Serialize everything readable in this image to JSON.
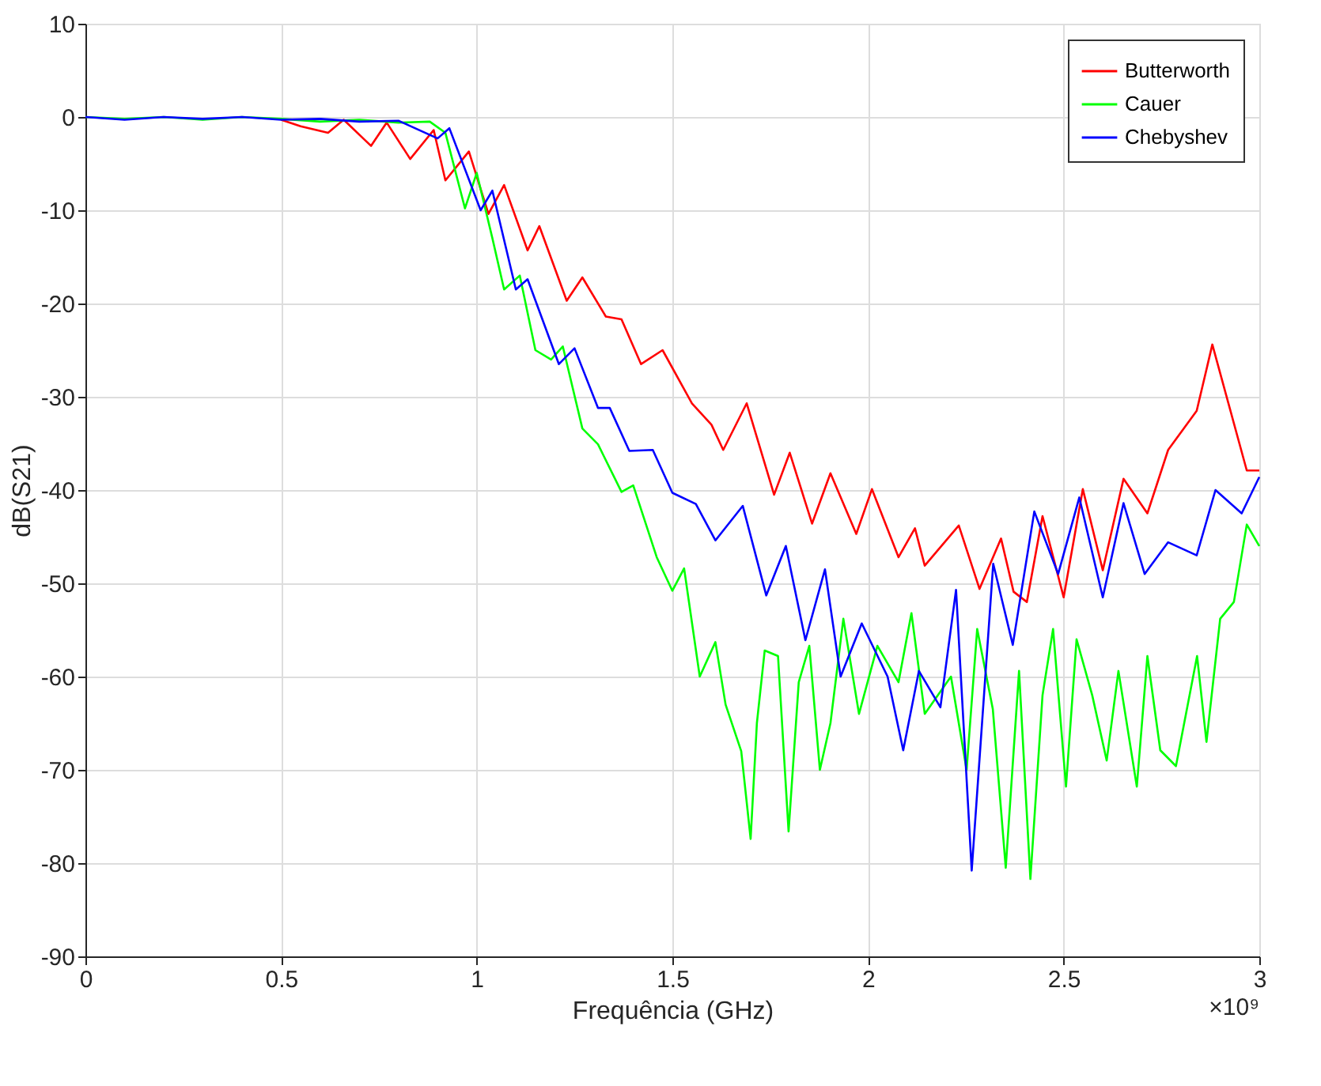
{
  "chart_data": {
    "type": "line",
    "xlabel": "Frequência (GHz)",
    "ylabel": "dB(S21)",
    "annotations": [
      "×10⁹"
    ],
    "xlim": [
      0,
      3
    ],
    "ylim": [
      -90,
      10
    ],
    "xticks": [
      0,
      0.5,
      1,
      1.5,
      2,
      2.5,
      3
    ],
    "yticks": [
      -90,
      -80,
      -70,
      -60,
      -50,
      -40,
      -30,
      -20,
      -10,
      0,
      10
    ],
    "grid": true,
    "legend": "top right",
    "line_style": "solid",
    "marker": "none",
    "series": [
      {
        "name": "Butterworth",
        "color": "#ff0000",
        "x": [
          0.5,
          0.55,
          0.62,
          0.66,
          0.73,
          0.77,
          0.83,
          0.89,
          0.92,
          0.98,
          1.03,
          1.07,
          1.13,
          1.16,
          1.23,
          1.27,
          1.33,
          1.37,
          1.42,
          1.475,
          1.55,
          1.6,
          1.63,
          1.69,
          1.76,
          1.8,
          1.857,
          1.904,
          1.97,
          2.01,
          2.078,
          2.12,
          2.145,
          2.232,
          2.285,
          2.34,
          2.372,
          2.406,
          2.446,
          2.5,
          2.549,
          2.6,
          2.653,
          2.714,
          2.767,
          2.84,
          2.88,
          2.968,
          3.0
        ],
        "values": [
          -0.3,
          -1,
          -1.7,
          -0.3,
          -3.1,
          -0.6,
          -4.5,
          -1.4,
          -6.8,
          -3.7,
          -10.4,
          -7.3,
          -14.3,
          -11.7,
          -19.7,
          -17.2,
          -21.4,
          -21.7,
          -26.5,
          -25,
          -30.7,
          -33,
          -35.7,
          -30.7,
          -40.5,
          -36,
          -43.6,
          -38.2,
          -44.7,
          -39.9,
          -47.2,
          -44.1,
          -48.1,
          -43.8,
          -50.6,
          -45.2,
          -50.9,
          -52,
          -42.8,
          -51.5,
          -39.9,
          -48.6,
          -38.8,
          -42.5,
          -35.7,
          -31.5,
          -24.4,
          -37.9,
          -37.9
        ]
      },
      {
        "name": "Cauer",
        "color": "#00ff00",
        "x": [
          0,
          0.1,
          0.2,
          0.3,
          0.4,
          0.5,
          0.6,
          0.7,
          0.8,
          0.88,
          0.92,
          0.97,
          1.0,
          1.04,
          1.07,
          1.11,
          1.15,
          1.19,
          1.22,
          1.27,
          1.31,
          1.37,
          1.4,
          1.46,
          1.5,
          1.53,
          1.57,
          1.61,
          1.636,
          1.676,
          1.7,
          1.716,
          1.736,
          1.77,
          1.797,
          1.823,
          1.85,
          1.877,
          1.904,
          1.937,
          1.977,
          2.024,
          2.078,
          2.111,
          2.145,
          2.212,
          2.252,
          2.279,
          2.319,
          2.352,
          2.386,
          2.415,
          2.446,
          2.473,
          2.506,
          2.533,
          2.573,
          2.61,
          2.64,
          2.687,
          2.714,
          2.747,
          2.787,
          2.841,
          2.865,
          2.9,
          2.935,
          2.968,
          3.0
        ],
        "values": [
          0,
          -0.2,
          0,
          -0.3,
          0,
          -0.2,
          -0.5,
          -0.3,
          -0.6,
          -0.5,
          -1.7,
          -9.8,
          -6,
          -13,
          -18.5,
          -17,
          -25,
          -26,
          -24.6,
          -33.4,
          -35.1,
          -40.2,
          -39.5,
          -47.2,
          -50.8,
          -48.4,
          -60,
          -56.3,
          -63,
          -68,
          -77.4,
          -65,
          -57.2,
          -57.8,
          -76.6,
          -60.6,
          -56.7,
          -70,
          -65,
          -53.8,
          -64,
          -56.7,
          -60.6,
          -53.2,
          -64,
          -60,
          -70,
          -54.9,
          -63.5,
          -80.5,
          -59.4,
          -81.7,
          -62,
          -54.9,
          -71.8,
          -56,
          -62,
          -69,
          -59.4,
          -71.8,
          -57.8,
          -67.9,
          -69.6,
          -57.8,
          -67,
          -53.8,
          -52,
          -43.7,
          -46
        ]
      },
      {
        "name": "Chebyshev",
        "color": "#0000ff",
        "x": [
          0,
          0.1,
          0.2,
          0.3,
          0.4,
          0.5,
          0.6,
          0.7,
          0.8,
          0.9,
          0.93,
          1.01,
          1.04,
          1.1,
          1.13,
          1.21,
          1.25,
          1.31,
          1.34,
          1.39,
          1.45,
          1.5,
          1.56,
          1.61,
          1.68,
          1.74,
          1.79,
          1.84,
          1.89,
          1.93,
          1.984,
          2.05,
          2.09,
          2.13,
          2.185,
          2.225,
          2.265,
          2.32,
          2.37,
          2.425,
          2.486,
          2.54,
          2.6,
          2.653,
          2.707,
          2.767,
          2.84,
          2.888,
          2.955,
          3.0
        ],
        "values": [
          0,
          -0.3,
          0,
          -0.2,
          0,
          -0.3,
          -0.2,
          -0.5,
          -0.4,
          -2.3,
          -1.2,
          -10,
          -7.9,
          -18.5,
          -17.4,
          -26.5,
          -24.8,
          -31.2,
          -31.2,
          -35.8,
          -35.7,
          -40.3,
          -41.5,
          -45.4,
          -41.7,
          -51.3,
          -46,
          -56.1,
          -48.5,
          -60,
          -54.3,
          -60,
          -67.9,
          -59.4,
          -63.3,
          -50.7,
          -80.8,
          -47.9,
          -56.6,
          -42.3,
          -49,
          -40.8,
          -51.5,
          -41.4,
          -49,
          -45.6,
          -47,
          -40,
          -42.5,
          -38.6
        ]
      }
    ]
  }
}
